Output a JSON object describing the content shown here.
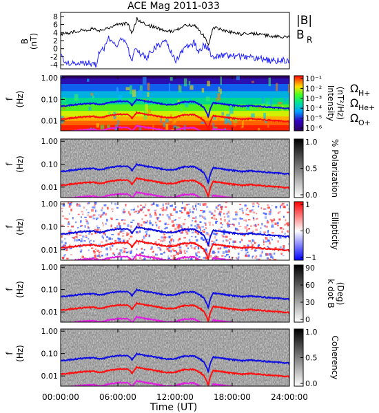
{
  "title": "ACE Mag 2011-033",
  "colors": {
    "B_total": "#000000",
    "B_R": "#2020ff",
    "H_plus": "#1010e0",
    "He_plus": "#ff1010",
    "O_plus": "#e020e0"
  },
  "chart_data": [
    {
      "type": "line",
      "panel": "magnetic-field",
      "ylabel_main": "B",
      "ylabel_unit": "(nT)",
      "yticks": [
        "8",
        "6",
        "4",
        "2",
        "0",
        "-2",
        "-4"
      ],
      "ylim": [
        -5,
        9
      ],
      "xlim": [
        0,
        24
      ],
      "legend": [
        "|B|",
        "B",
        "R"
      ],
      "series": [
        {
          "name": "|B|",
          "x": [
            0,
            1,
            2,
            3,
            3.5,
            3.9,
            4.5,
            5,
            6,
            7,
            7.5,
            8,
            8.5,
            9,
            10,
            11,
            12,
            13,
            14,
            15,
            15.5,
            16,
            17,
            18,
            19,
            20,
            21,
            22,
            23,
            24
          ],
          "values": [
            3.5,
            4.0,
            4.5,
            4.8,
            5.0,
            4.4,
            4.5,
            5.2,
            6.0,
            6.3,
            3.8,
            7.4,
            6.5,
            6.0,
            5.2,
            4.3,
            4.4,
            5.8,
            5.8,
            3.2,
            1.0,
            5.3,
            4.6,
            4.0,
            3.6,
            3.8,
            3.5,
            3.2,
            3.0,
            2.8
          ]
        },
        {
          "name": "B",
          "x": [
            0,
            0.5,
            1,
            2,
            3,
            3.8,
            4.0,
            4.5,
            5,
            6,
            6.5,
            7,
            7.5,
            7.8,
            8.5,
            9,
            10,
            11,
            12,
            13,
            14,
            14.5,
            15,
            15.5,
            16,
            17,
            18,
            19,
            20,
            21,
            22,
            23,
            24
          ],
          "values": [
            -2.0,
            -3.0,
            -3.5,
            -3.8,
            -3.5,
            -4.0,
            -0.5,
            -0.3,
            2.5,
            1.0,
            2.5,
            0.5,
            -3.5,
            0.8,
            -1.5,
            -2.2,
            0.5,
            2.0,
            -3.0,
            0.0,
            1.5,
            -1.0,
            1.0,
            0.0,
            -2.5,
            -1.5,
            -1.8,
            -2.0,
            -2.2,
            -2.5,
            -3.0,
            -3.0,
            -2.8
          ]
        }
      ]
    },
    {
      "type": "heatmap",
      "panel": "intensity",
      "ylabel_main": "f",
      "ylabel_unit": "(Hz)",
      "yticks": [
        "1.00",
        "0.10",
        "0.01"
      ],
      "colorbar_label": "Intensity",
      "colorbar_unit": "(nT²/Hz)",
      "colorbar_ticks": [
        "10⁻¹",
        "10⁻²",
        "10⁻³",
        "10⁻⁴",
        "10⁻⁵",
        "10⁻⁶"
      ]
    },
    {
      "type": "heatmap",
      "panel": "polarization",
      "ylabel_main": "f",
      "ylabel_unit": "(Hz)",
      "yticks": [
        "1.00",
        "0.10",
        "0.01"
      ],
      "colorbar_label": "% Polarization",
      "colorbar_ticks": [
        "1.0",
        "0.5",
        "0.0"
      ]
    },
    {
      "type": "heatmap",
      "panel": "ellipticity",
      "ylabel_main": "f",
      "ylabel_unit": "(Hz)",
      "yticks": [
        "1.00",
        "0.10",
        "0.01"
      ],
      "colorbar_label": "Ellipticity",
      "colorbar_ticks": [
        "1",
        "0",
        "−1"
      ]
    },
    {
      "type": "heatmap",
      "panel": "k-dot-b",
      "ylabel_main": "f",
      "ylabel_unit": "(Hz)",
      "yticks": [
        "1.00",
        "0.10",
        "0.01"
      ],
      "colorbar_label": "k dot B",
      "colorbar_unit": "(Deg)",
      "colorbar_ticks": [
        "90",
        "60",
        "30",
        "0"
      ]
    },
    {
      "type": "heatmap",
      "panel": "coherency",
      "ylabel_main": "f",
      "ylabel_unit": "(Hz)",
      "yticks": [
        "1.00",
        "0.10",
        "0.01"
      ],
      "colorbar_label": "Coherency",
      "colorbar_ticks": [
        "1.0",
        "0.5",
        "0.0"
      ]
    }
  ],
  "gyrofrequency_legend": {
    "omega": "Ω",
    "H_sub": "H+",
    "He_sub": "He+",
    "O_sub": "O+"
  },
  "gyrofrequency_base_hz": {
    "H_plus": 0.06,
    "He_plus": 0.015,
    "O_plus": 0.0037
  },
  "x_axis": {
    "label": "Time (UT)",
    "ticks": [
      "00:00:00",
      "06:00:00",
      "12:00:00",
      "18:00:00",
      "24:00:00"
    ],
    "range_hours": [
      0,
      24
    ]
  }
}
